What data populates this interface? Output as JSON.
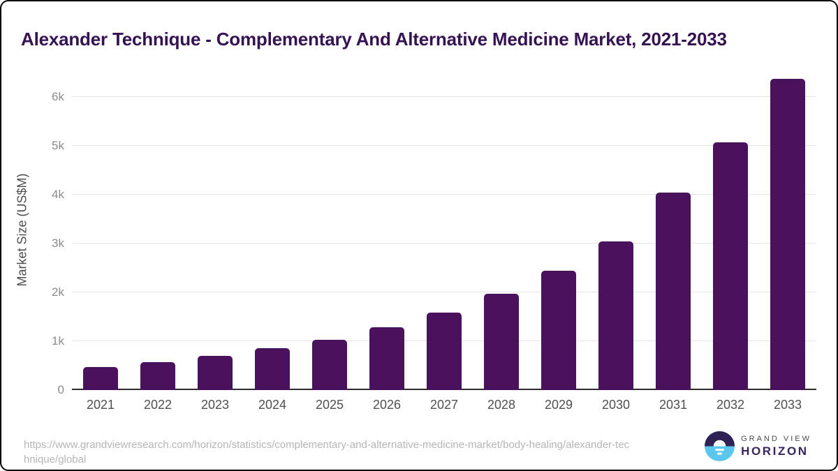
{
  "header": {
    "title": "Alexander Technique - Complementary And Alternative Medicine Market, 2021-2033"
  },
  "chart_data": {
    "type": "bar",
    "title": "Alexander Technique - Complementary And Alternative Medicine Market, 2021-2033",
    "categories": [
      "2021",
      "2022",
      "2023",
      "2024",
      "2025",
      "2026",
      "2027",
      "2028",
      "2029",
      "2030",
      "2031",
      "2032",
      "2033"
    ],
    "values": [
      470,
      570,
      700,
      855,
      1035,
      1285,
      1580,
      1965,
      2450,
      3040,
      4040,
      5070,
      6375
    ],
    "xlabel": "",
    "ylabel": "Market Size (US$M)",
    "ylim": [
      0,
      6550
    ],
    "ytick_values": [
      0,
      1000,
      2000,
      3000,
      4000,
      5000,
      6000
    ],
    "ytick_labels": [
      "0",
      "1k",
      "2k",
      "3k",
      "4k",
      "5k",
      "6k"
    ],
    "grid": "horizontal",
    "legend": "none"
  },
  "footer": {
    "source_url_line1": "https://www.grandviewresearch.com/horizon/statistics/complementary-and-alternative-medicine-market/body-healing/alexander-tec",
    "source_url_line2": "hnique/global",
    "logo": {
      "brand_top": "GRAND VIEW",
      "brand_bottom": "HORIZON"
    }
  },
  "colors": {
    "bar": "#4a115c",
    "title_text": "#351252",
    "axis_line": "#2b2b2b",
    "gridline": "#e4e4e4",
    "y_tick_text": "#8c8c8c",
    "x_tick_text": "#4f4f4f",
    "url_text": "#b5b5b5",
    "logo_blue": "#5bc6ee",
    "logo_purple": "#2f2153"
  }
}
